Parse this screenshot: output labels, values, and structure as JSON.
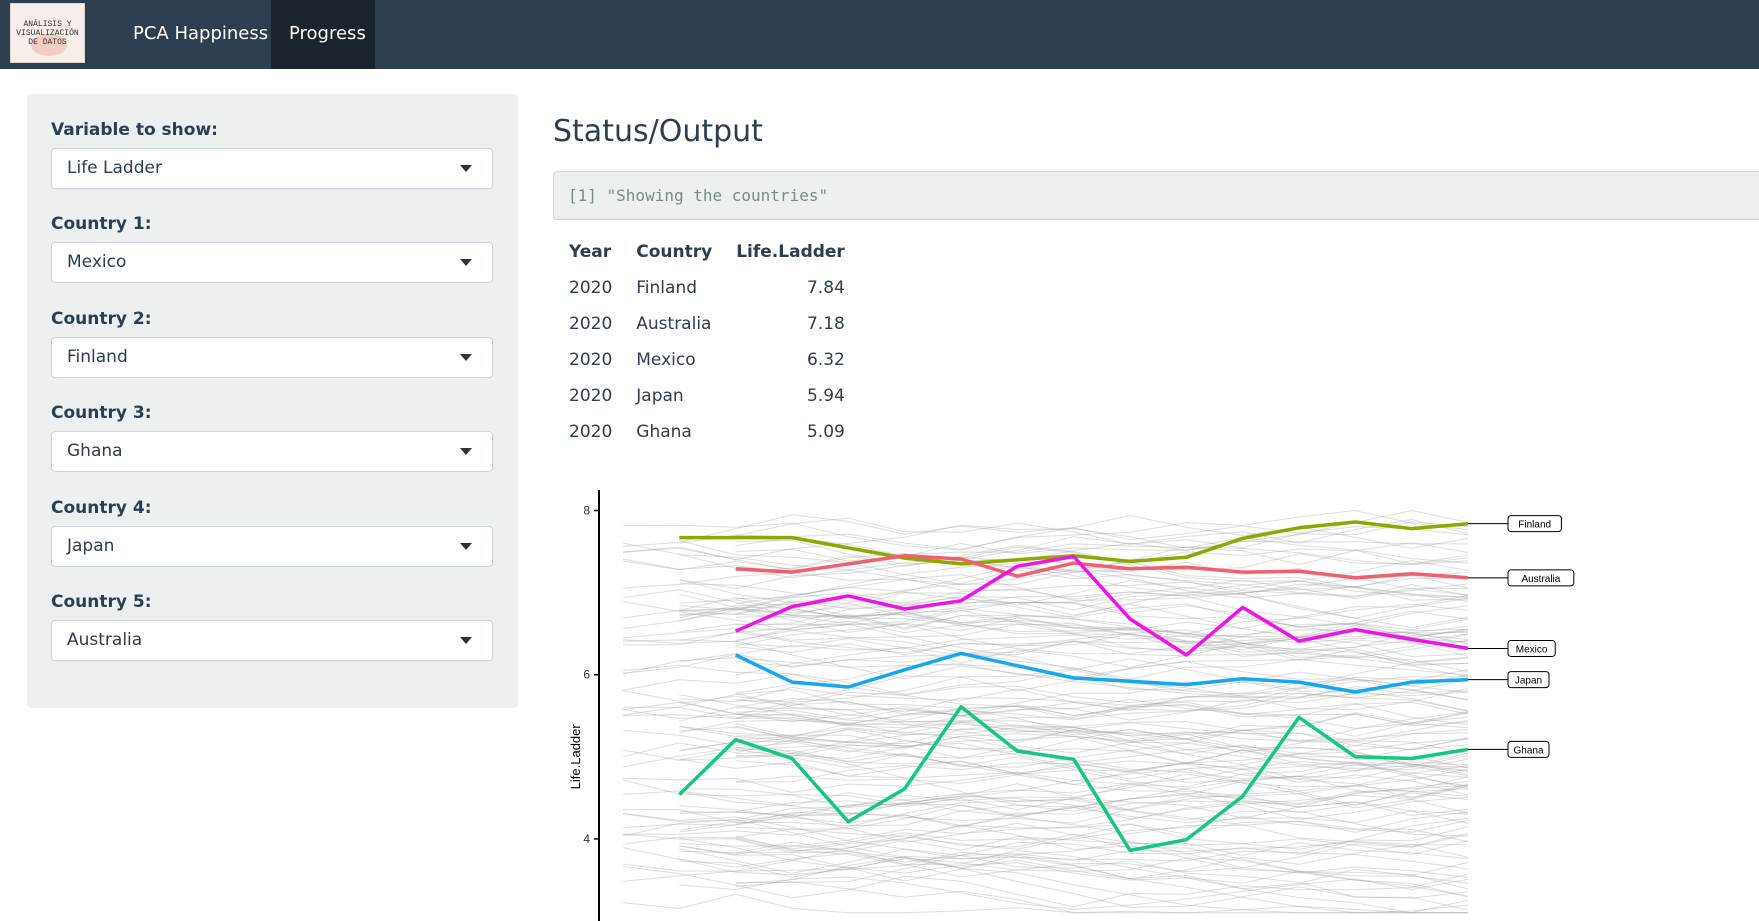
{
  "navbar": {
    "logo_text": [
      "ANÁLISIS Y",
      "VISUALIZACIÓN",
      "DE DATOS"
    ],
    "tabs": [
      {
        "label": "PCA Happiness",
        "active": false
      },
      {
        "label": "Progress",
        "active": true
      }
    ]
  },
  "sidebar": {
    "fields": [
      {
        "label": "Variable to show:",
        "value": "Life Ladder"
      },
      {
        "label": "Country 1:",
        "value": "Mexico"
      },
      {
        "label": "Country 2:",
        "value": "Finland"
      },
      {
        "label": "Country 3:",
        "value": "Ghana"
      },
      {
        "label": "Country 4:",
        "value": "Japan"
      },
      {
        "label": "Country 5:",
        "value": "Australia"
      }
    ]
  },
  "main": {
    "title": "Status/Output",
    "verbatim": "[1] \"Showing the countries\"",
    "table": {
      "headers": [
        "Year",
        "Country",
        "Life.Ladder"
      ],
      "rows": [
        [
          "2020",
          "Finland",
          "7.84"
        ],
        [
          "2020",
          "Australia",
          "7.18"
        ],
        [
          "2020",
          "Mexico",
          "6.32"
        ],
        [
          "2020",
          "Japan",
          "5.94"
        ],
        [
          "2020",
          "Ghana",
          "5.09"
        ]
      ]
    }
  },
  "chart_data": {
    "type": "line",
    "ylabel": "Life.Ladder",
    "yticks": [
      4,
      6,
      8
    ],
    "ylim": [
      3.0,
      8.25
    ],
    "xlim": [
      2005,
      2020
    ],
    "background_lines": "many grey country lines",
    "series": [
      {
        "name": "Finland",
        "color": "#8fa800",
        "x": [
          2006,
          2008,
          2010,
          2011,
          2012,
          2013,
          2014,
          2015,
          2016,
          2017,
          2018,
          2019,
          2020
        ],
        "y": [
          7.67,
          7.67,
          7.42,
          7.35,
          7.4,
          7.45,
          7.38,
          7.43,
          7.66,
          7.79,
          7.86,
          7.78,
          7.84
        ]
      },
      {
        "name": "Australia",
        "color": "#f0606e",
        "x": [
          2007,
          2008,
          2010,
          2011,
          2012,
          2013,
          2014,
          2015,
          2016,
          2017,
          2018,
          2019,
          2020
        ],
        "y": [
          7.29,
          7.25,
          7.45,
          7.41,
          7.2,
          7.36,
          7.29,
          7.31,
          7.25,
          7.26,
          7.18,
          7.23,
          7.18
        ]
      },
      {
        "name": "Mexico",
        "color": "#f012e8",
        "x": [
          2007,
          2008,
          2009,
          2010,
          2011,
          2012,
          2013,
          2014,
          2015,
          2016,
          2017,
          2018,
          2019,
          2020
        ],
        "y": [
          6.53,
          6.83,
          6.96,
          6.8,
          6.9,
          7.32,
          7.44,
          6.68,
          6.24,
          6.82,
          6.41,
          6.55,
          6.43,
          6.32
        ]
      },
      {
        "name": "Japan",
        "color": "#15a8ee",
        "x": [
          2007,
          2008,
          2009,
          2010,
          2011,
          2012,
          2013,
          2014,
          2015,
          2016,
          2017,
          2018,
          2019,
          2020
        ],
        "y": [
          6.24,
          5.91,
          5.85,
          6.06,
          6.26,
          6.11,
          5.96,
          5.92,
          5.88,
          5.95,
          5.91,
          5.79,
          5.91,
          5.94
        ]
      },
      {
        "name": "Ghana",
        "color": "#13c980",
        "x": [
          2006,
          2007,
          2008,
          2009,
          2010,
          2011,
          2012,
          2013,
          2014,
          2015,
          2016,
          2017,
          2018,
          2019,
          2020
        ],
        "y": [
          4.54,
          5.21,
          4.98,
          4.21,
          4.61,
          5.61,
          5.07,
          4.97,
          3.86,
          3.99,
          4.52,
          5.48,
          5.0,
          4.98,
          5.09
        ]
      }
    ]
  }
}
